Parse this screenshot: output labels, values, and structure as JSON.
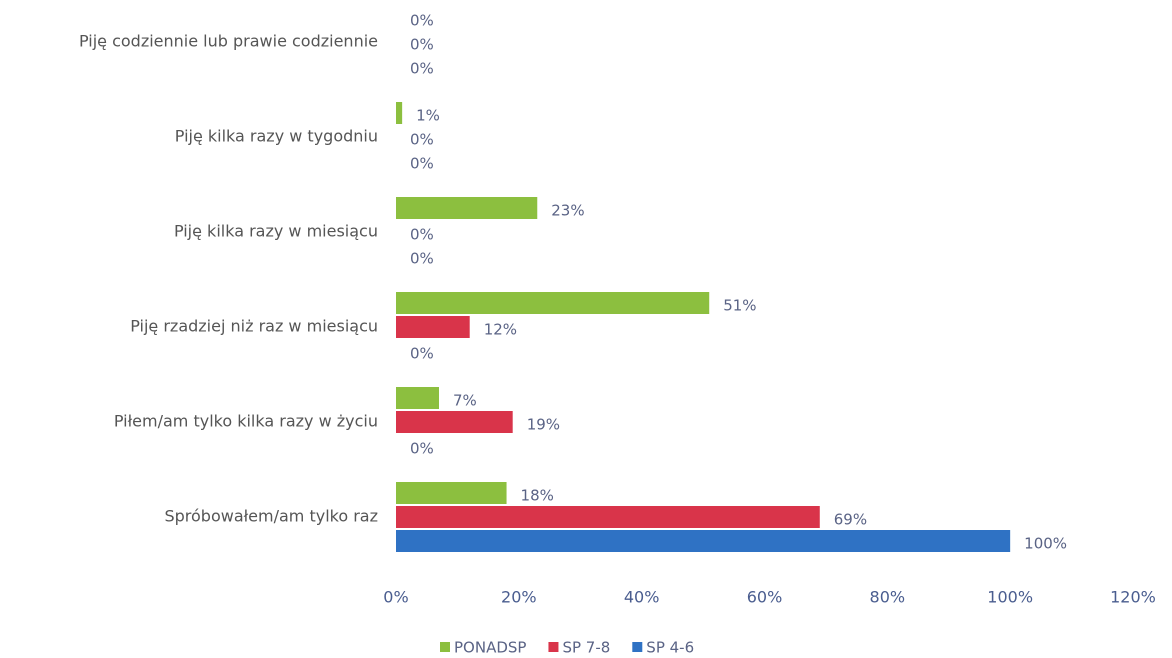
{
  "chart_data": {
    "type": "bar",
    "categories": [
      "Piję codziennie lub prawie codziennie",
      "Piję kilka razy w tygodniu",
      "Piję kilka razy w miesiącu",
      "Piję rzadziej niż raz w miesiącu",
      "Piłem/am tylko kilka razy w życiu",
      "Spróbowałem/am tylko raz"
    ],
    "series": [
      {
        "name": "PONADSP",
        "color": "#8cbf3f",
        "values": [
          0,
          1,
          23,
          51,
          7,
          18
        ],
        "value_labels": [
          "0%",
          "1%",
          "23%",
          "51%",
          "7%",
          "18%"
        ]
      },
      {
        "name": "SP 7-8",
        "color": "#d9344a",
        "values": [
          0,
          0,
          0,
          12,
          19,
          69
        ],
        "value_labels": [
          "0%",
          "0%",
          "0%",
          "12%",
          "19%",
          "69%"
        ]
      },
      {
        "name": "SP 4-6",
        "color": "#2f72c4",
        "values": [
          0,
          0,
          0,
          0,
          0,
          100
        ],
        "value_labels": [
          "0%",
          "0%",
          "0%",
          "0%",
          "0%",
          "100%"
        ]
      }
    ],
    "xlim": [
      0,
      120
    ],
    "xticks": [
      {
        "value": 0,
        "label": "0%"
      },
      {
        "value": 20,
        "label": "20%"
      },
      {
        "value": 40,
        "label": "40%"
      },
      {
        "value": 60,
        "label": "60%"
      },
      {
        "value": 80,
        "label": "80%"
      },
      {
        "value": 100,
        "label": "100%"
      },
      {
        "value": 120,
        "label": "120%"
      }
    ],
    "grid": false
  }
}
